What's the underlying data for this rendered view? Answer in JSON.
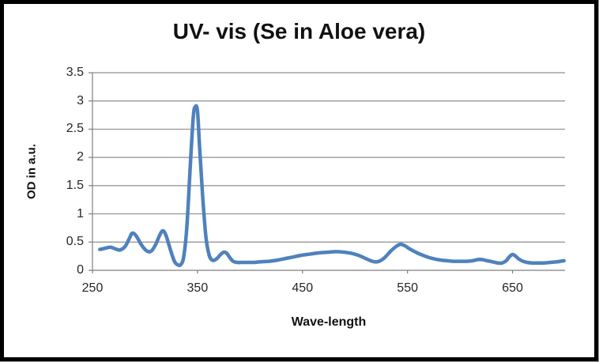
{
  "chart_data": {
    "type": "line",
    "title": "UV- vis (Se in Aloe vera)",
    "xlabel": "Wave-length",
    "ylabel": "OD in a.u.",
    "x_range": [
      250,
      700
    ],
    "y_range": [
      0,
      3.5
    ],
    "x_ticks": [
      250,
      350,
      450,
      550,
      650
    ],
    "y_ticks": [
      0,
      0.5,
      1,
      1.5,
      2,
      2.5,
      3,
      3.5
    ],
    "grid": "horizontal-only",
    "legend": "none",
    "series": [
      {
        "name": "OD",
        "color": "#4F81BD",
        "points": [
          [
            257,
            0.37
          ],
          [
            262,
            0.39
          ],
          [
            267,
            0.41
          ],
          [
            272,
            0.38
          ],
          [
            276,
            0.36
          ],
          [
            281,
            0.42
          ],
          [
            285,
            0.56
          ],
          [
            288,
            0.66
          ],
          [
            292,
            0.6
          ],
          [
            297,
            0.44
          ],
          [
            302,
            0.34
          ],
          [
            306,
            0.34
          ],
          [
            310,
            0.45
          ],
          [
            314,
            0.62
          ],
          [
            317,
            0.7
          ],
          [
            320,
            0.62
          ],
          [
            324,
            0.38
          ],
          [
            328,
            0.16
          ],
          [
            331,
            0.1
          ],
          [
            334,
            0.1
          ],
          [
            337,
            0.25
          ],
          [
            340,
            0.8
          ],
          [
            343,
            1.8
          ],
          [
            346,
            2.72
          ],
          [
            348,
            2.9
          ],
          [
            350,
            2.82
          ],
          [
            352,
            2.2
          ],
          [
            355,
            1.3
          ],
          [
            358,
            0.6
          ],
          [
            361,
            0.28
          ],
          [
            364,
            0.18
          ],
          [
            368,
            0.2
          ],
          [
            372,
            0.28
          ],
          [
            375,
            0.32
          ],
          [
            378,
            0.3
          ],
          [
            381,
            0.22
          ],
          [
            384,
            0.16
          ],
          [
            388,
            0.14
          ],
          [
            393,
            0.14
          ],
          [
            398,
            0.14
          ],
          [
            404,
            0.14
          ],
          [
            410,
            0.15
          ],
          [
            418,
            0.16
          ],
          [
            426,
            0.18
          ],
          [
            434,
            0.21
          ],
          [
            442,
            0.24
          ],
          [
            450,
            0.27
          ],
          [
            458,
            0.29
          ],
          [
            466,
            0.31
          ],
          [
            474,
            0.32
          ],
          [
            482,
            0.33
          ],
          [
            490,
            0.32
          ],
          [
            497,
            0.3
          ],
          [
            504,
            0.26
          ],
          [
            510,
            0.21
          ],
          [
            515,
            0.17
          ],
          [
            519,
            0.15
          ],
          [
            523,
            0.16
          ],
          [
            528,
            0.22
          ],
          [
            534,
            0.34
          ],
          [
            539,
            0.42
          ],
          [
            543,
            0.46
          ],
          [
            547,
            0.44
          ],
          [
            552,
            0.38
          ],
          [
            558,
            0.32
          ],
          [
            564,
            0.27
          ],
          [
            570,
            0.23
          ],
          [
            576,
            0.2
          ],
          [
            582,
            0.18
          ],
          [
            588,
            0.17
          ],
          [
            594,
            0.16
          ],
          [
            600,
            0.16
          ],
          [
            606,
            0.16
          ],
          [
            612,
            0.17
          ],
          [
            617,
            0.19
          ],
          [
            621,
            0.19
          ],
          [
            626,
            0.17
          ],
          [
            631,
            0.15
          ],
          [
            636,
            0.13
          ],
          [
            640,
            0.13
          ],
          [
            644,
            0.17
          ],
          [
            647,
            0.24
          ],
          [
            650,
            0.28
          ],
          [
            653,
            0.25
          ],
          [
            656,
            0.2
          ],
          [
            660,
            0.16
          ],
          [
            664,
            0.14
          ],
          [
            669,
            0.13
          ],
          [
            674,
            0.13
          ],
          [
            680,
            0.13
          ],
          [
            686,
            0.14
          ],
          [
            692,
            0.15
          ],
          [
            699,
            0.17
          ]
        ]
      }
    ]
  },
  "colors": {
    "background": "#ffffff",
    "frame": "#000000",
    "gridline": "#8f8f8f",
    "axis": "#7f7f7f",
    "tick_text": "#262626",
    "title_text": "#111111",
    "series_line": "#4F81BD"
  }
}
